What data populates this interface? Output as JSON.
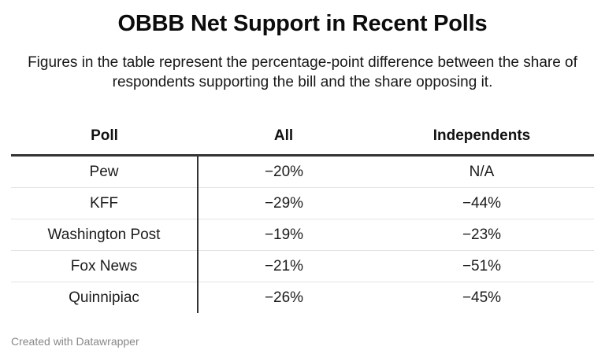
{
  "header": {
    "title": "OBBB Net Support in Recent Polls",
    "subtitle": "Figures in the table represent the percentage-point difference between the share of respondents supporting the bill and the share opposing it."
  },
  "chart_data": {
    "type": "table",
    "columns": [
      "Poll",
      "All",
      "Independents"
    ],
    "rows": [
      [
        "Pew",
        "−20%",
        "N/A"
      ],
      [
        "KFF",
        "−29%",
        "−44%"
      ],
      [
        "Washington Post",
        "−19%",
        "−23%"
      ],
      [
        "Fox News",
        "−21%",
        "−51%"
      ],
      [
        "Quinnipiac",
        "−26%",
        "−45%"
      ]
    ]
  },
  "footer": {
    "credit": "Created with Datawrapper"
  }
}
